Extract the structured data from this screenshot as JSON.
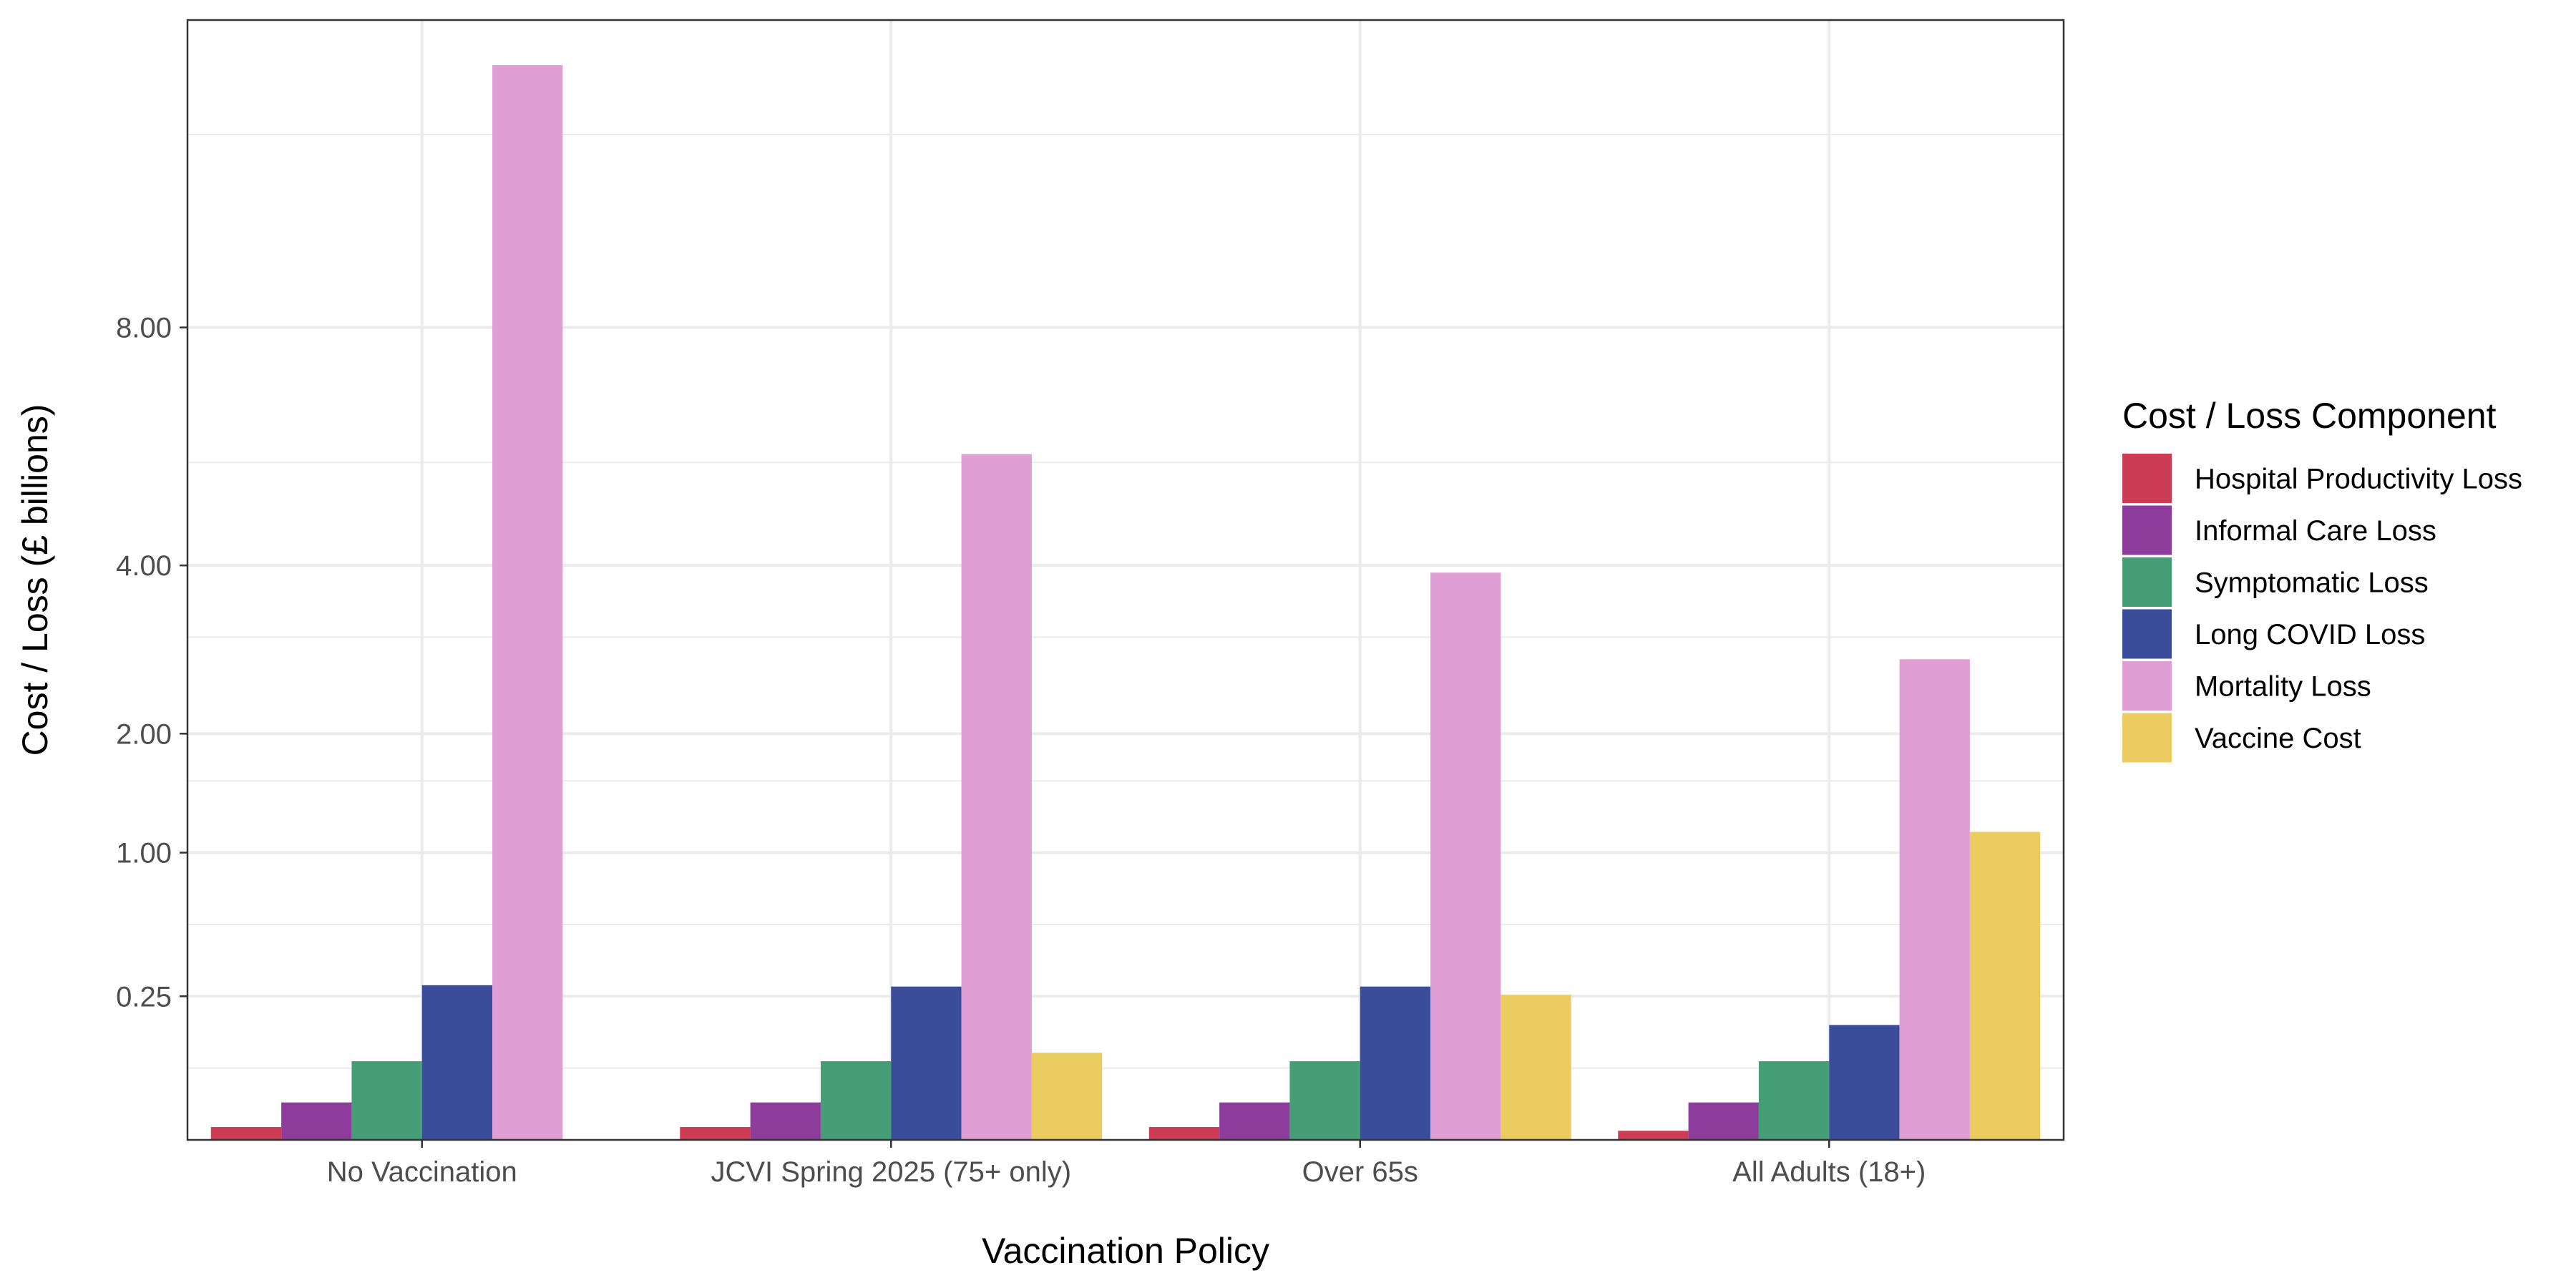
{
  "chart_data": {
    "type": "bar",
    "title": "",
    "xlabel": "Vaccination Policy",
    "ylabel": "Cost / Loss (£ billions)",
    "y_scale": "sqrt",
    "ylim": [
      0,
      15.2
    ],
    "yticks": [
      0.25,
      1,
      2,
      4,
      8
    ],
    "ytick_labels": [
      "0.25",
      "1.00",
      "2.00",
      "4.00",
      "8.00"
    ],
    "y_minor_gridlines": [
      0.0625,
      0.5625,
      1.5625,
      3.0625,
      5.5625,
      12.25
    ],
    "grid": true,
    "legend_title": "Cost / Loss Component",
    "legend_position": "right",
    "categories": [
      "No Vaccination",
      "JCVI Spring 2025 (75+ only)",
      "Over 65s",
      "All Adults (18+)"
    ],
    "series": [
      {
        "name": "Hospital Productivity Loss",
        "color": "#CC3D55",
        "values": [
          0.002,
          0.002,
          0.002,
          0.001
        ]
      },
      {
        "name": "Informal Care Loss",
        "color": "#8E3C9C",
        "values": [
          0.017,
          0.017,
          0.017,
          0.017
        ]
      },
      {
        "name": "Symptomatic Loss",
        "color": "#459E75",
        "values": [
          0.075,
          0.075,
          0.075,
          0.075
        ]
      },
      {
        "name": "Long COVID Loss",
        "color": "#3A4C9A",
        "values": [
          0.29,
          0.285,
          0.285,
          0.16
        ]
      },
      {
        "name": "Mortality Loss",
        "color": "#DF9FD4",
        "values": [
          14.0,
          5.7,
          3.9,
          2.8
        ]
      },
      {
        "name": "Vaccine Cost",
        "color": "#EACC61",
        "values": [
          0,
          0.092,
          0.255,
          1.15
        ]
      }
    ]
  }
}
